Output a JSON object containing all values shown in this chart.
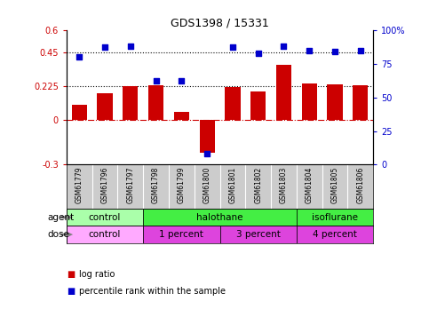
{
  "title": "GDS1398 / 15331",
  "samples": [
    "GSM61779",
    "GSM61796",
    "GSM61797",
    "GSM61798",
    "GSM61799",
    "GSM61800",
    "GSM61801",
    "GSM61802",
    "GSM61803",
    "GSM61804",
    "GSM61805",
    "GSM61806"
  ],
  "log_ratio": [
    0.1,
    0.18,
    0.225,
    0.23,
    0.05,
    -0.22,
    0.22,
    0.19,
    0.37,
    0.24,
    0.235,
    0.23
  ],
  "percentile_rank": [
    80,
    87,
    88,
    62,
    62,
    8,
    87,
    83,
    88,
    85,
    84,
    85
  ],
  "bar_color": "#cc0000",
  "dot_color": "#0000cc",
  "ylim_left": [
    -0.3,
    0.6
  ],
  "ylim_right": [
    0,
    100
  ],
  "yticks_left": [
    -0.3,
    0.0,
    0.225,
    0.45,
    0.6
  ],
  "ytick_labels_left": [
    "-0.3",
    "0",
    "0.225",
    "0.45",
    "0.6"
  ],
  "yticks_right": [
    0,
    25,
    50,
    75,
    100
  ],
  "ytick_labels_right": [
    "0",
    "25",
    "50",
    "75",
    "100%"
  ],
  "hlines": [
    0.225,
    0.45
  ],
  "hline_style": ":",
  "zero_line_style": "-.",
  "agent_groups": [
    {
      "label": "control",
      "start": 0,
      "end": 3,
      "color": "#aaffaa"
    },
    {
      "label": "halothane",
      "start": 3,
      "end": 9,
      "color": "#44ee44"
    },
    {
      "label": "isoflurane",
      "start": 9,
      "end": 12,
      "color": "#44ee44"
    }
  ],
  "dose_groups": [
    {
      "label": "control",
      "start": 0,
      "end": 3,
      "color": "#ffaaff"
    },
    {
      "label": "1 percent",
      "start": 3,
      "end": 6,
      "color": "#dd44dd"
    },
    {
      "label": "3 percent",
      "start": 6,
      "end": 9,
      "color": "#dd44dd"
    },
    {
      "label": "4 percent",
      "start": 9,
      "end": 12,
      "color": "#dd44dd"
    }
  ],
  "sample_box_color": "#cccccc",
  "background_color": "#ffffff",
  "bar_width": 0.6,
  "dot_size": 16
}
